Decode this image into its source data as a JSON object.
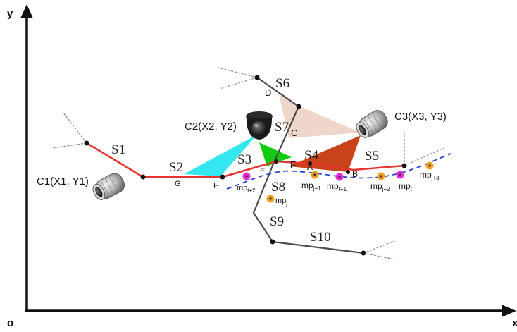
{
  "axes": {
    "y_label": "y",
    "x_label": "x",
    "origin_label": "o"
  },
  "segments": {
    "s1": "S1",
    "s2": "S2",
    "s3": "S3",
    "s4": "S4",
    "s5": "S5",
    "s6": "S6",
    "s7": "S7",
    "s8": "S8",
    "s9": "S9",
    "s10": "S10"
  },
  "points": {
    "a": "A",
    "b": "B",
    "c": "C",
    "d": "D",
    "e": "E",
    "f": "F",
    "g": "G",
    "h": "H"
  },
  "cameras": {
    "c1": "C1(X1, Y1)",
    "c2": "C2(X2, Y2)",
    "c3": "C3(X3, Y3)"
  },
  "mobile_points": {
    "mp_t2": {
      "base": "mp",
      "sub": "t+2"
    },
    "mp_j": {
      "base": "mp",
      "sub": "j"
    },
    "mp_j1": {
      "base": "mp",
      "sub": "j+1"
    },
    "mp_t1": {
      "base": "mp",
      "sub": "t+1"
    },
    "mp_j2": {
      "base": "mp",
      "sub": "j+2"
    },
    "mp_t": {
      "base": "mp",
      "sub": "t"
    },
    "mp_j3": {
      "base": "mp",
      "sub": "j+3"
    }
  },
  "colors": {
    "red_path": "#e8352f",
    "grey_path": "#4d4d4d",
    "trajectory": "#2244dd",
    "fov_c2": "#33e6f0",
    "fov_green": "#11cc11",
    "fov_c3": "#c8421a",
    "fov_c6": "#e8c8b8",
    "marker_magenta": "#e62ad9",
    "marker_orange": "#f0a020"
  }
}
